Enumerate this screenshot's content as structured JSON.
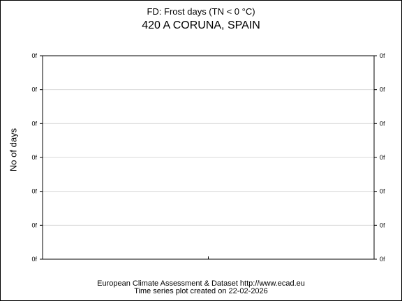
{
  "chart_data": {
    "type": "line",
    "title": "FD: Frost days (TN < 0 °C)",
    "subtitle": "420 A CORUNA, SPAIN",
    "ylabel": "No of days",
    "xlabel": "",
    "y_tick_labels": [
      "0f",
      "0f",
      "0f",
      "0f",
      "0f",
      "0f",
      "0f"
    ],
    "series": [],
    "grid": true,
    "legend": "none"
  },
  "footer": {
    "line1": "European Climate Assessment & Dataset  http://www.ecad.eu",
    "line2": "Time series plot created on 22-02-2026"
  }
}
